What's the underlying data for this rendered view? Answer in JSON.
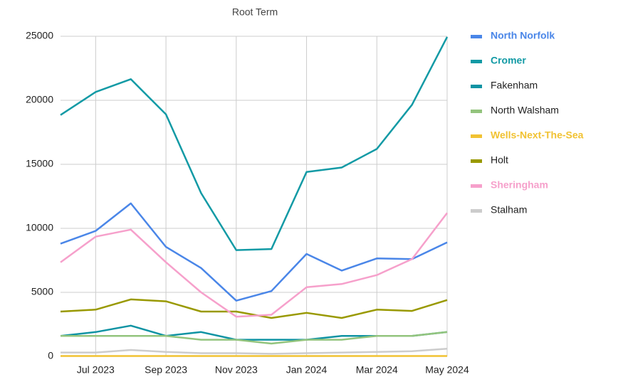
{
  "chart_data": {
    "type": "line",
    "title": "Root Term",
    "categories": [
      null,
      "Jul 2023",
      null,
      "Sep 2023",
      null,
      "Nov 2023",
      null,
      "Jan 2024",
      null,
      "Mar 2024",
      null,
      "May 2024"
    ],
    "ylim": [
      0,
      25000
    ],
    "yticks": [
      0,
      5000,
      10000,
      15000,
      20000,
      25000
    ],
    "grid": true,
    "legend": "right",
    "series": [
      {
        "name": "North Norfolk",
        "color": "#4a86e8",
        "emphasized": true,
        "values": [
          8800,
          9800,
          11950,
          8550,
          6900,
          4350,
          5100,
          8000,
          6700,
          7650,
          7600,
          8900
        ]
      },
      {
        "name": "Cromer",
        "color": "#129aa5",
        "emphasized": true,
        "values": [
          18850,
          20650,
          21650,
          18900,
          12750,
          8300,
          8380,
          14400,
          14750,
          16200,
          19650,
          24950
        ]
      },
      {
        "name": "Fakenham",
        "color": "#0f93a3",
        "emphasized": false,
        "values": [
          1600,
          1900,
          2400,
          1600,
          1900,
          1300,
          1300,
          1300,
          1600,
          1600,
          1600,
          1900
        ]
      },
      {
        "name": "North Walsham",
        "color": "#93c47d",
        "emphasized": false,
        "values": [
          1600,
          1600,
          1600,
          1600,
          1300,
          1300,
          1000,
          1300,
          1300,
          1600,
          1600,
          1900
        ]
      },
      {
        "name": "Wells-Next-The-Sea",
        "color": "#f1c232",
        "emphasized": true,
        "values": [
          30,
          30,
          30,
          30,
          30,
          30,
          30,
          30,
          30,
          30,
          30,
          30
        ]
      },
      {
        "name": "Holt",
        "color": "#999900",
        "emphasized": false,
        "values": [
          3500,
          3650,
          4450,
          4300,
          3500,
          3500,
          3000,
          3400,
          3000,
          3650,
          3550,
          4400
        ]
      },
      {
        "name": "Sheringham",
        "color": "#f6a0cb",
        "emphasized": true,
        "values": [
          7350,
          9350,
          9900,
          7350,
          5000,
          3100,
          3250,
          5400,
          5650,
          6350,
          7600,
          11200
        ]
      },
      {
        "name": "Stalham",
        "color": "#cccccc",
        "emphasized": false,
        "values": [
          300,
          300,
          500,
          350,
          250,
          250,
          200,
          250,
          300,
          350,
          400,
          600
        ]
      }
    ]
  }
}
